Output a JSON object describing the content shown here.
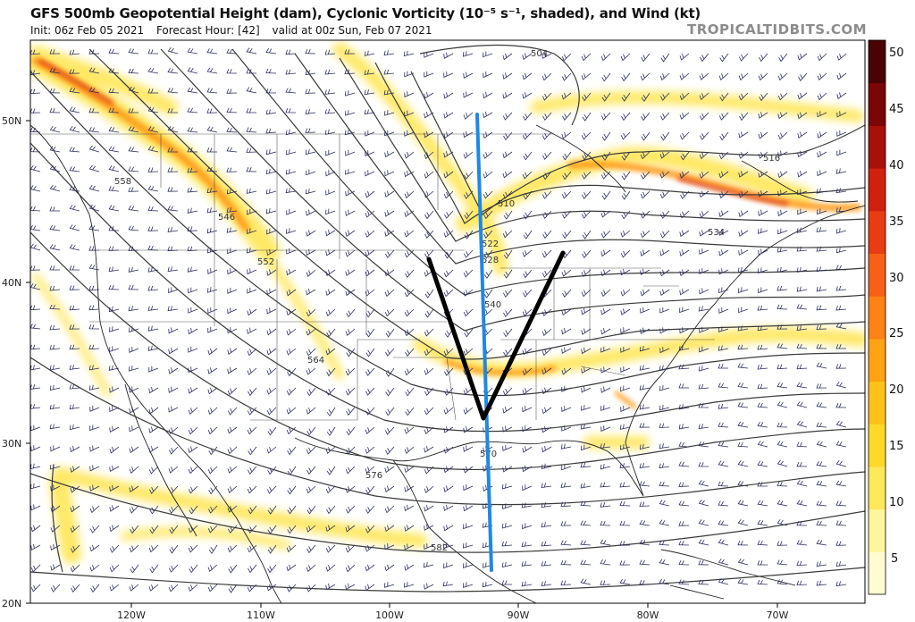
{
  "header": {
    "title": "GFS 500mb Geopotential Height (dam), Cyclonic Vorticity (10⁻⁵ s⁻¹, shaded), and Wind (kt)",
    "init": "Init: 06z Feb 05 2021",
    "forecast_hour": "Forecast Hour: [42]",
    "valid": "valid at 00z Sun, Feb 07 2021",
    "brand": "TROPICALTIDBITS.COM"
  },
  "axes": {
    "lon_labels": [
      "120W",
      "110W",
      "100W",
      "90W",
      "80W",
      "70W"
    ],
    "lat_labels": [
      "50N",
      "40N",
      "30N",
      "20N"
    ]
  },
  "colorbar": {
    "ticks": [
      "50",
      "45",
      "40",
      "35",
      "30",
      "25",
      "20",
      "15",
      "10",
      "5"
    ],
    "colors": [
      "#fffdd0",
      "#fff59a",
      "#ffe85a",
      "#ffd92a",
      "#ffc21a",
      "#ffa214",
      "#ff8214",
      "#f86018",
      "#e83c12",
      "#d0200e",
      "#a8100a",
      "#7a0606",
      "#4a0202"
    ]
  },
  "height_contour_labels": [
    "504",
    "510",
    "516",
    "522",
    "528",
    "534",
    "540",
    "546",
    "552",
    "558",
    "564",
    "570",
    "576",
    "582"
  ],
  "annotations": {
    "trough_axis_color": "#1e88e5",
    "v_shape_color": "#000000"
  }
}
